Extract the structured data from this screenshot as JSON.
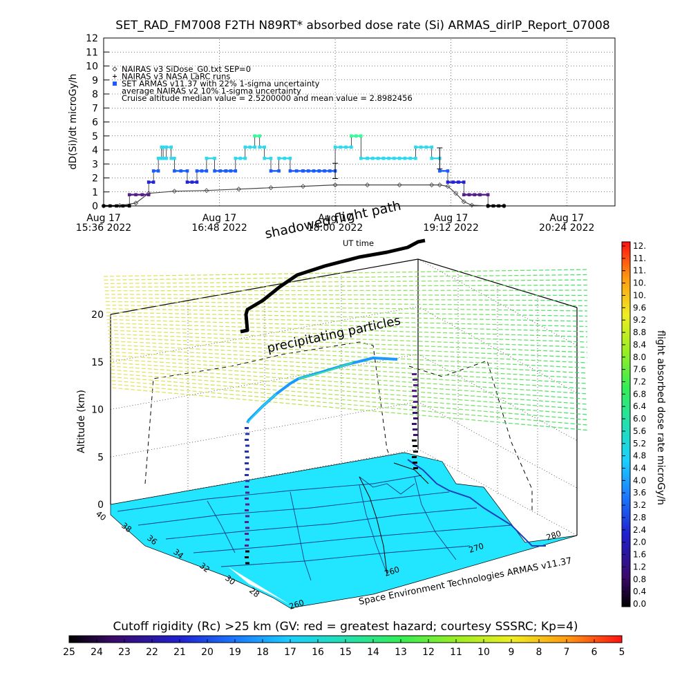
{
  "title": "SET_RAD_FM7008  F2TH N89RT* absorbed dose rate (Si) ARMAS_dirIP_Report_07008",
  "top_chart": {
    "ylabel": "dD(Si)/dt microGy/h",
    "xlabel": "UT time",
    "ylim": [
      0,
      12
    ],
    "yticks": [
      "0",
      "1",
      "2",
      "3",
      "4",
      "5",
      "6",
      "7",
      "8",
      "9",
      "10",
      "11",
      "12"
    ],
    "xticks": [
      {
        "date": "Aug 17",
        "time": "15:36 2022"
      },
      {
        "date": "Aug 17",
        "time": "16:48 2022"
      },
      {
        "date": "Aug 17",
        "time": "18:00 2022"
      },
      {
        "date": "Aug 17",
        "time": "19:12 2022"
      },
      {
        "date": "Aug 17",
        "time": "20:24 2022"
      }
    ],
    "legend": [
      "NAIRAS v3 SiDose_G0.txt SEP=0",
      "NAIRAS v3 NASA LaRC runs",
      "SET ARMAS v11.37 with 22% 1-sigma uncertainty",
      "average NAIRAS v2 10% 1-sigma uncertainty",
      "Cruise altitude median value = 2.5200000 and mean value = 2.8982456"
    ]
  },
  "scene": {
    "zlabel": "Altitude (km)",
    "zticks": [
      "0",
      "5",
      "10",
      "15",
      "20"
    ],
    "lat_ticks": [
      "40",
      "38",
      "36",
      "34",
      "32",
      "30",
      "28"
    ],
    "lon_ticks": [
      "260",
      "270",
      "280"
    ],
    "lon_ticks_front": [
      "260"
    ],
    "label_shadowed": "shadowed flight path",
    "label_precip": "precipitating particles",
    "credit": "Space Environment Technologies ARMAS v11.37"
  },
  "right_colorbar": {
    "label": "flight absorbed dose rate microGy/h",
    "ticks": [
      "12.",
      "11.",
      "11.",
      "10.",
      "10.",
      "9.6",
      "9.2",
      "8.8",
      "8.4",
      "8.0",
      "7.6",
      "7.2",
      "6.8",
      "6.4",
      "6.0",
      "5.6",
      "5.2",
      "4.8",
      "4.4",
      "4.0",
      "3.6",
      "3.2",
      "2.8",
      "2.4",
      "2.0",
      "1.6",
      "1.2",
      "0.8",
      "0.4",
      "0.0"
    ]
  },
  "bottom_colorbar": {
    "label": "Cutoff rigidity (Rc) >25 km (GV: red = greatest hazard; courtesy SSSRC; Kp=4)",
    "ticks": [
      "25",
      "24",
      "23",
      "22",
      "21",
      "20",
      "19",
      "18",
      "17",
      "16",
      "15",
      "14",
      "13",
      "12",
      "11",
      "10",
      "9",
      "8",
      "7",
      "6",
      "5"
    ]
  },
  "colors": {
    "armas_high": "#33ff99",
    "armas_mid": "#2ed8f0",
    "armas_low": "#1a5cff",
    "armas_base": "#2222dd",
    "armas_purple": "#55208a",
    "nairas": "#444444",
    "map_fill": "#22e6ff"
  },
  "chart_data": {
    "type": "scatter",
    "title": "SET_RAD_FM7008  F2TH N89RT* absorbed dose rate (Si) ARMAS_dirIP_Report_07008",
    "xlabel": "UT time",
    "ylabel": "dD(Si)/dt microGy/h",
    "ylim": [
      0,
      12
    ],
    "xlim": [
      "2022-08-17 15:36",
      "2022-08-17 20:54"
    ],
    "grid": true,
    "legend_position": "top-left",
    "series": [
      {
        "name": "SET ARMAS v11.37 with 22% 1-sigma uncertainty",
        "x": [
          "15:36",
          "15:52",
          "16:04",
          "16:07",
          "16:10",
          "16:12",
          "16:13",
          "16:15",
          "16:18",
          "16:20",
          "16:28",
          "16:34",
          "16:40",
          "16:45",
          "16:52",
          "16:58",
          "17:04",
          "17:10",
          "17:13",
          "17:16",
          "17:20",
          "17:25",
          "17:32",
          "17:40",
          "17:50",
          "18:00",
          "18:10",
          "18:16",
          "18:20",
          "18:30",
          "18:40",
          "18:50",
          "19:00",
          "19:05",
          "19:10",
          "19:20",
          "19:30",
          "19:35",
          "19:45"
        ],
        "y": [
          0.0,
          0.8,
          1.7,
          2.5,
          3.4,
          4.2,
          3.4,
          4.2,
          3.4,
          2.5,
          1.7,
          2.5,
          3.4,
          2.5,
          2.5,
          3.4,
          4.2,
          5.0,
          4.2,
          3.4,
          2.5,
          3.4,
          2.5,
          2.5,
          2.5,
          4.2,
          5.0,
          3.4,
          3.4,
          3.4,
          3.4,
          4.2,
          3.4,
          2.5,
          1.7,
          0.8,
          0.8,
          0.0,
          0.0
        ]
      },
      {
        "name": "NAIRAS v3 SiDose_G0.txt SEP=0",
        "x": [
          "15:36",
          "15:46",
          "15:56",
          "16:04",
          "16:20",
          "16:40",
          "17:00",
          "17:20",
          "17:40",
          "18:00",
          "18:20",
          "18:40",
          "19:00",
          "19:05",
          "19:10",
          "19:15",
          "19:20",
          "19:25",
          "19:35",
          "19:45"
        ],
        "y": [
          0.0,
          0.02,
          0.2,
          0.9,
          1.05,
          1.1,
          1.2,
          1.3,
          1.4,
          1.5,
          1.5,
          1.5,
          1.5,
          1.5,
          1.4,
          0.9,
          0.3,
          0.05,
          0.0,
          0.0
        ]
      }
    ]
  }
}
